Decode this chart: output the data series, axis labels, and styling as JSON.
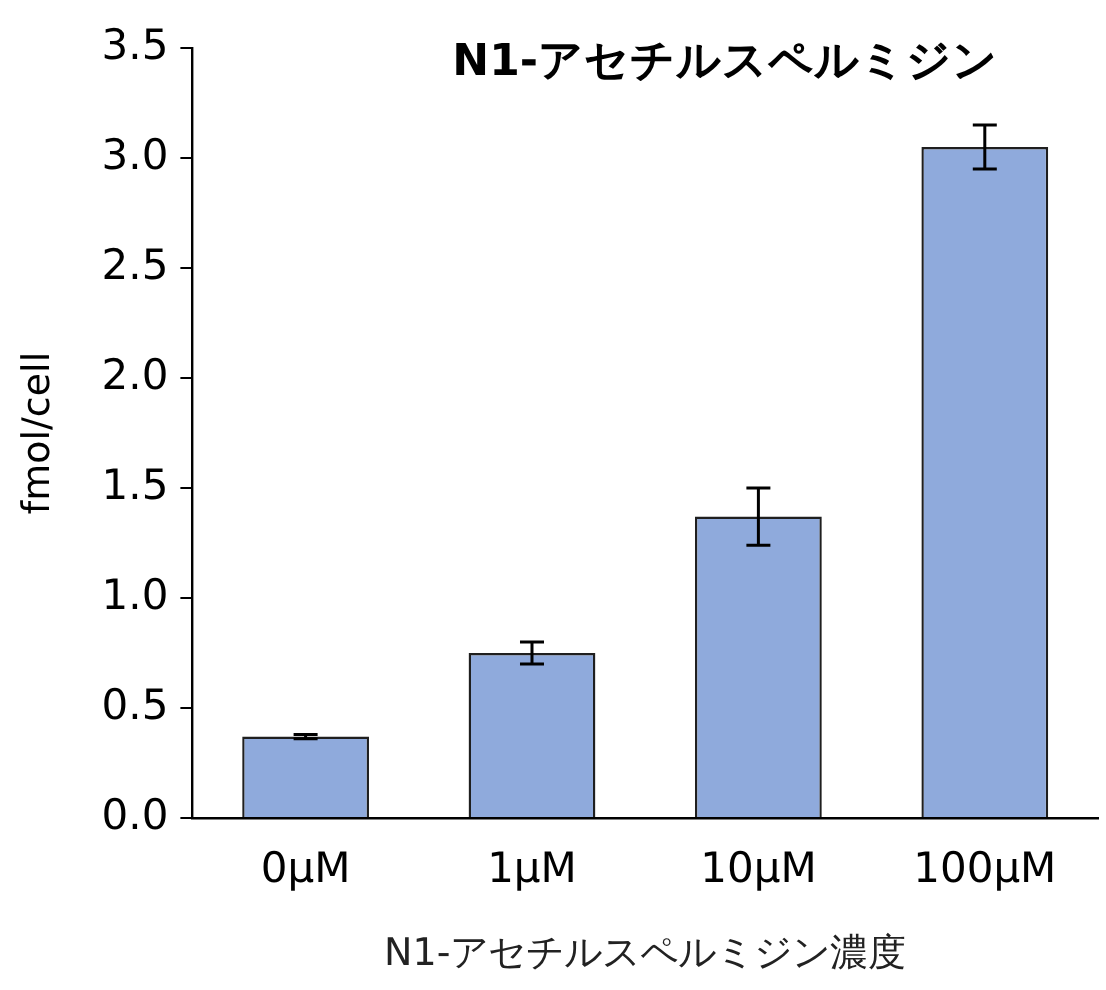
{
  "chart_data": {
    "type": "bar",
    "title": "N1-アセチルスペルミジン",
    "xlabel": "N1-アセチルスペルミジン濃度",
    "ylabel": "fmol/cell",
    "categories": [
      "0µM",
      "1µM",
      "10µM",
      "100µM"
    ],
    "values": [
      0.37,
      0.75,
      1.37,
      3.05
    ],
    "errors": [
      0.01,
      0.05,
      0.13,
      0.1
    ],
    "color": "#8faadc",
    "ylim": [
      0,
      3.5
    ],
    "yticks": [
      {
        "value": 0,
        "label": "0.0"
      },
      {
        "value": 0.5,
        "label": "0.5"
      },
      {
        "value": 1,
        "label": "1.0"
      },
      {
        "value": 1.5,
        "label": "1.5"
      },
      {
        "value": 2,
        "label": "2.0"
      },
      {
        "value": 2.5,
        "label": "2.5"
      },
      {
        "value": 3,
        "label": "3.0"
      },
      {
        "value": 3.5,
        "label": "3.5"
      }
    ],
    "grid": false,
    "legend": false
  }
}
